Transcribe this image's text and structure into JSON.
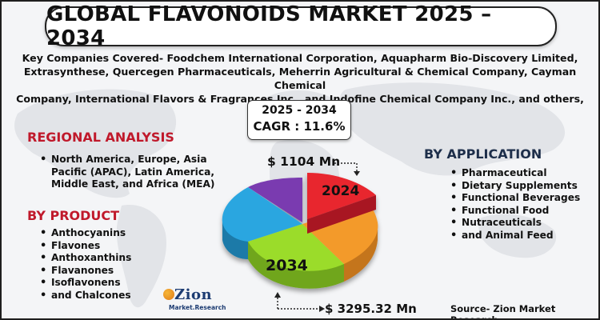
{
  "title": "GLOBAL FLAVONOIDS MARKET 2025 – 2034",
  "companies": {
    "line1": "Key Companies Covered- Foodchem International Corporation, Aquapharm Bio-Discovery Limited,",
    "line2": "Extrasynthese, Quercegen Pharmaceuticals, Meherrin Agricultural & Chemical Company, Cayman Chemical",
    "line3": "Company, International Flavors & Fragrances Inc., and Indofine Chemical Company Inc., and others, and others."
  },
  "cagr_box": {
    "years": "2025 - 2034",
    "cagr": "CAGR : 11.6%"
  },
  "regional": {
    "title": "REGIONAL ANALYSIS",
    "items": [
      "North America, Europe, Asia",
      "Pacific (APAC), Latin America,",
      "Middle East, and Africa (MEA)"
    ]
  },
  "product": {
    "title": "BY PRODUCT",
    "items": [
      "Anthocyanins",
      "Flavones",
      "Anthoxanthins",
      "Flavanones",
      "Isoflavonens",
      "and Chalcones"
    ]
  },
  "application": {
    "title": "BY APPLICATION",
    "items": [
      "Pharmaceutical",
      "Dietary Supplements",
      "Functional Beverages",
      "Functional Food",
      "Nutraceuticals",
      "and Animal Feed"
    ]
  },
  "chart": {
    "value_2024": "$ 1104 Mn",
    "label_2024": "2024",
    "value_2034": "$ 3295.32 Mn",
    "label_2034": "2034",
    "slice_colors": [
      "#e8252f",
      "#f39a2c",
      "#9bdc2a",
      "#2aa6e0",
      "#7a3bb0"
    ]
  },
  "logo": {
    "name": "Zion",
    "sub": "Market.Research"
  },
  "source": "Source- Zion Market Research"
}
